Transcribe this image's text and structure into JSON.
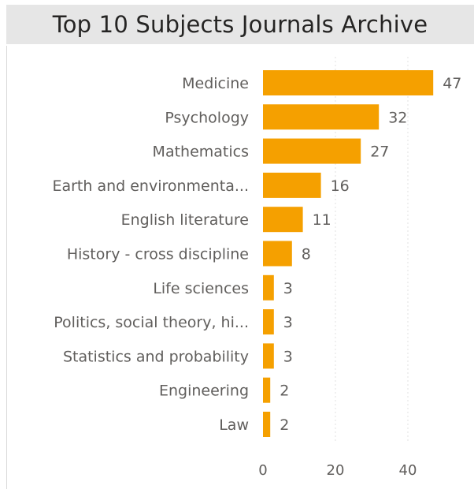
{
  "chart_data": {
    "type": "bar",
    "orientation": "horizontal",
    "title": "Top 10 Subjects Journals Archive",
    "categories": [
      "Medicine",
      "Psychology",
      "Mathematics",
      "Earth and environmenta...",
      "English literature",
      "History - cross discipline",
      "Life sciences",
      "Politics, social theory, hi...",
      "Statistics and probability",
      "Engineering",
      "Law"
    ],
    "values": [
      47,
      32,
      27,
      16,
      11,
      8,
      3,
      3,
      3,
      2,
      2
    ],
    "xlim": [
      0,
      50
    ],
    "xticks": [
      0,
      20,
      40
    ],
    "bar_color": "#f5a000",
    "grid": "vertical-dotted",
    "data_labels": true
  }
}
